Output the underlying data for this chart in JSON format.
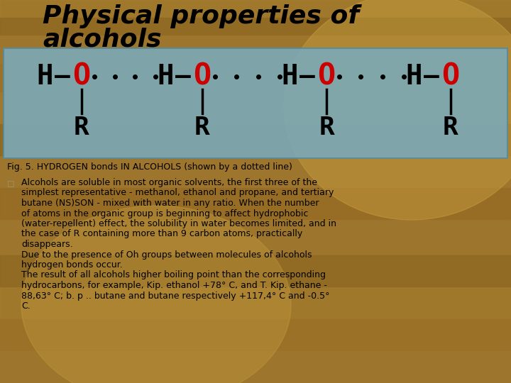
{
  "title_line1": "Physical properties of",
  "title_line2": "alcohols",
  "fig_caption": "Fig. 5. HYDROGEN bonds IN ALCOHOLS (shown by a dotted line)",
  "body_line1": "Alcohols are soluble in most organic solvents, the first three of the\nsimplest representative - methanol, ethanol and propane, and tertiary\nbutane (NS)SON - mixed with water in any ratio. When the number\nof atoms in the organic group is beginning to affect hydrophobic\n(water-repellent) effect, the solubility in water becomes limited, and in\nthe case of R containing more than 9 carbon atoms, practically\ndisappears.",
  "body_line2": "Due to the presence of Oh groups between molecules of alcohols\nhydrogen bonds occur.",
  "body_line3": "The result of all alcohols higher boiling point than the corresponding\nhydrocarbons, for example, Kip. ethanol +78° C, and T. Kip. ethane -\n88,63° C; b. p .. butane and butane respectively +117,4° C and -0.5°\nC.",
  "box_color": "#7BAAB8",
  "box_edge_color": "#5A8A9A",
  "red": "#CC0000",
  "black": "#000000",
  "text_color": "#111111",
  "bg_wood_base": "#9B7328",
  "bg_wood_light": "#B8922A",
  "bg_ellipse1_color": "#C8A040",
  "bg_ellipse2_color": "#C8A040"
}
